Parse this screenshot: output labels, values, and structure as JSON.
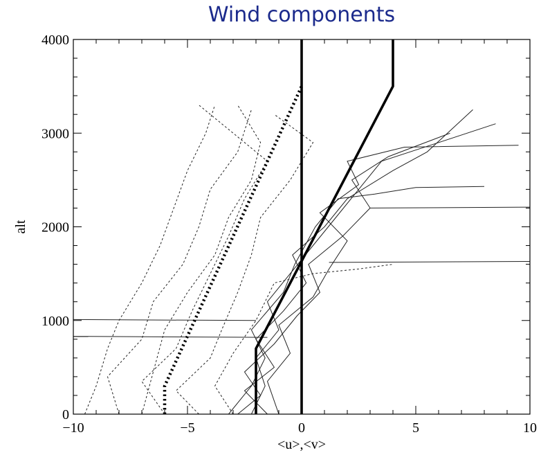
{
  "chart_data": {
    "type": "line",
    "title": "Wind components",
    "xlabel": "<u>,<v>",
    "ylabel": "alt",
    "xlim": [
      -10,
      10
    ],
    "ylim": [
      0,
      4000
    ],
    "x_ticks": [
      -10,
      -5,
      0,
      5,
      10
    ],
    "x_tick_labels": [
      "−10",
      "−5",
      "0",
      "5",
      "10"
    ],
    "y_ticks": [
      0,
      1000,
      2000,
      3000,
      4000
    ],
    "y_tick_labels": [
      "0",
      "1000",
      "2000",
      "3000",
      "4000"
    ],
    "grid": false,
    "legend": "none",
    "series": [
      {
        "style": "thick-solid",
        "color": "#000000",
        "points": [
          [
            -2,
            0
          ],
          [
            -2,
            700
          ],
          [
            4,
            3500
          ],
          [
            4,
            4000
          ]
        ]
      },
      {
        "style": "thick-dotted",
        "color": "#000000",
        "points": [
          [
            -6,
            0
          ],
          [
            -6,
            300
          ],
          [
            0,
            3500
          ]
        ]
      },
      {
        "style": "thick-solid",
        "color": "#000000",
        "points": [
          [
            0,
            0
          ],
          [
            0,
            4000
          ]
        ]
      },
      {
        "style": "thin-solid",
        "color": "#222222",
        "points": [
          [
            -2.2,
            0
          ],
          [
            -1.6,
            300
          ],
          [
            -2.0,
            600
          ],
          [
            -1.0,
            900
          ],
          [
            -1.5,
            1200
          ],
          [
            -0.5,
            1500
          ],
          [
            0.5,
            1800
          ],
          [
            1.5,
            2100
          ],
          [
            2.5,
            2400
          ],
          [
            3.5,
            2700
          ],
          [
            6.0,
            2900
          ],
          [
            8.5,
            3100
          ]
        ]
      },
      {
        "style": "thin-solid",
        "color": "#222222",
        "points": [
          [
            -1.5,
            0
          ],
          [
            -2.5,
            250
          ],
          [
            -1.2,
            500
          ],
          [
            -2.0,
            800
          ],
          [
            -0.8,
            1100
          ],
          [
            0.2,
            1400
          ],
          [
            -0.4,
            1700
          ],
          [
            1.0,
            2000
          ],
          [
            2.0,
            2300
          ],
          [
            4.0,
            2600
          ],
          [
            5.5,
            2800
          ],
          [
            7.5,
            3250
          ]
        ]
      },
      {
        "style": "thin-solid",
        "color": "#222222",
        "points": [
          [
            -2.8,
            0
          ],
          [
            -1.8,
            200
          ],
          [
            -2.5,
            450
          ],
          [
            -1.2,
            750
          ],
          [
            -0.2,
            1050
          ],
          [
            0.8,
            1300
          ],
          [
            0.3,
            1600
          ],
          [
            1.8,
            1900
          ],
          [
            3.0,
            2200
          ],
          [
            2.2,
            2500
          ],
          [
            3.8,
            2750
          ],
          [
            6.5,
            3000
          ]
        ]
      },
      {
        "style": "thin-solid",
        "color": "#222222",
        "points": [
          [
            -1.0,
            0
          ],
          [
            -1.5,
            350
          ],
          [
            -0.5,
            650
          ],
          [
            -1.0,
            950
          ],
          [
            0.5,
            1250
          ],
          [
            1.2,
            1550
          ],
          [
            2.0,
            1850
          ],
          [
            0.8,
            2150
          ],
          [
            2.5,
            2450
          ],
          [
            2.0,
            2700
          ],
          [
            4.5,
            2850
          ],
          [
            9.5,
            2870
          ]
        ]
      },
      {
        "style": "thin-solid",
        "color": "#222222",
        "points": [
          [
            -3.2,
            0
          ],
          [
            -2.2,
            300
          ],
          [
            -1.6,
            600
          ],
          [
            -2.2,
            900
          ],
          [
            -0.8,
            1300
          ],
          [
            -0.3,
            1600
          ],
          [
            0.6,
            2000
          ],
          [
            1.6,
            2300
          ],
          [
            3.2,
            2350
          ],
          [
            5.0,
            2420
          ],
          [
            8.0,
            2430
          ]
        ]
      },
      {
        "style": "thin-solid",
        "color": "#222222",
        "points": [
          [
            -2.0,
            1000
          ],
          [
            -10,
            1010
          ]
        ]
      },
      {
        "style": "thin-solid",
        "color": "#222222",
        "points": [
          [
            -1.5,
            820
          ],
          [
            -10,
            830
          ]
        ]
      },
      {
        "style": "thin-solid",
        "color": "#222222",
        "points": [
          [
            1.2,
            1620
          ],
          [
            10,
            1630
          ]
        ]
      },
      {
        "style": "thin-solid",
        "color": "#222222",
        "points": [
          [
            3.0,
            2200
          ],
          [
            10,
            2210
          ]
        ]
      },
      {
        "style": "dashed",
        "color": "#222222",
        "points": [
          [
            -8.0,
            0
          ],
          [
            -8.5,
            400
          ],
          [
            -7.0,
            800
          ],
          [
            -6.5,
            1200
          ],
          [
            -5.2,
            1600
          ],
          [
            -4.5,
            2000
          ],
          [
            -4.0,
            2400
          ],
          [
            -2.8,
            2800
          ],
          [
            -2.2,
            3250
          ]
        ]
      },
      {
        "style": "dashed",
        "color": "#222222",
        "points": [
          [
            -6.0,
            0
          ],
          [
            -7.0,
            350
          ],
          [
            -5.5,
            700
          ],
          [
            -4.8,
            1100
          ],
          [
            -4.0,
            1500
          ],
          [
            -3.2,
            1900
          ],
          [
            -2.5,
            2300
          ],
          [
            -1.5,
            2700
          ],
          [
            -3.5,
            3100
          ],
          [
            -4.5,
            3300
          ]
        ]
      },
      {
        "style": "dashed",
        "color": "#222222",
        "points": [
          [
            -9.5,
            0
          ],
          [
            -9.0,
            300
          ],
          [
            -8.5,
            700
          ],
          [
            -8.0,
            1000
          ],
          [
            -7.0,
            1400
          ],
          [
            -6.2,
            1800
          ],
          [
            -5.6,
            2200
          ],
          [
            -5.0,
            2600
          ],
          [
            -4.2,
            3000
          ],
          [
            -3.8,
            3300
          ]
        ]
      },
      {
        "style": "dashed",
        "color": "#222222",
        "points": [
          [
            -4.5,
            0
          ],
          [
            -5.5,
            250
          ],
          [
            -4.0,
            600
          ],
          [
            -3.5,
            900
          ],
          [
            -2.8,
            1300
          ],
          [
            -2.2,
            1700
          ],
          [
            -1.8,
            2100
          ],
          [
            -0.5,
            2500
          ],
          [
            0.5,
            2900
          ],
          [
            -1.2,
            3200
          ]
        ]
      },
      {
        "style": "dashed",
        "color": "#222222",
        "points": [
          [
            -7.0,
            0
          ],
          [
            -6.5,
            450
          ],
          [
            -6.0,
            900
          ],
          [
            -5.0,
            1300
          ],
          [
            -3.8,
            1700
          ],
          [
            -3.2,
            2100
          ],
          [
            -2.2,
            2500
          ],
          [
            -1.8,
            2900
          ],
          [
            -2.8,
            3300
          ]
        ]
      },
      {
        "style": "dashed",
        "color": "#222222",
        "points": [
          [
            -3.0,
            0
          ],
          [
            -3.8,
            300
          ],
          [
            -3.0,
            650
          ],
          [
            -2.0,
            1000
          ],
          [
            -1.2,
            1400
          ],
          [
            0.5,
            1500
          ],
          [
            2.5,
            1550
          ],
          [
            4.0,
            1600
          ]
        ]
      }
    ]
  }
}
